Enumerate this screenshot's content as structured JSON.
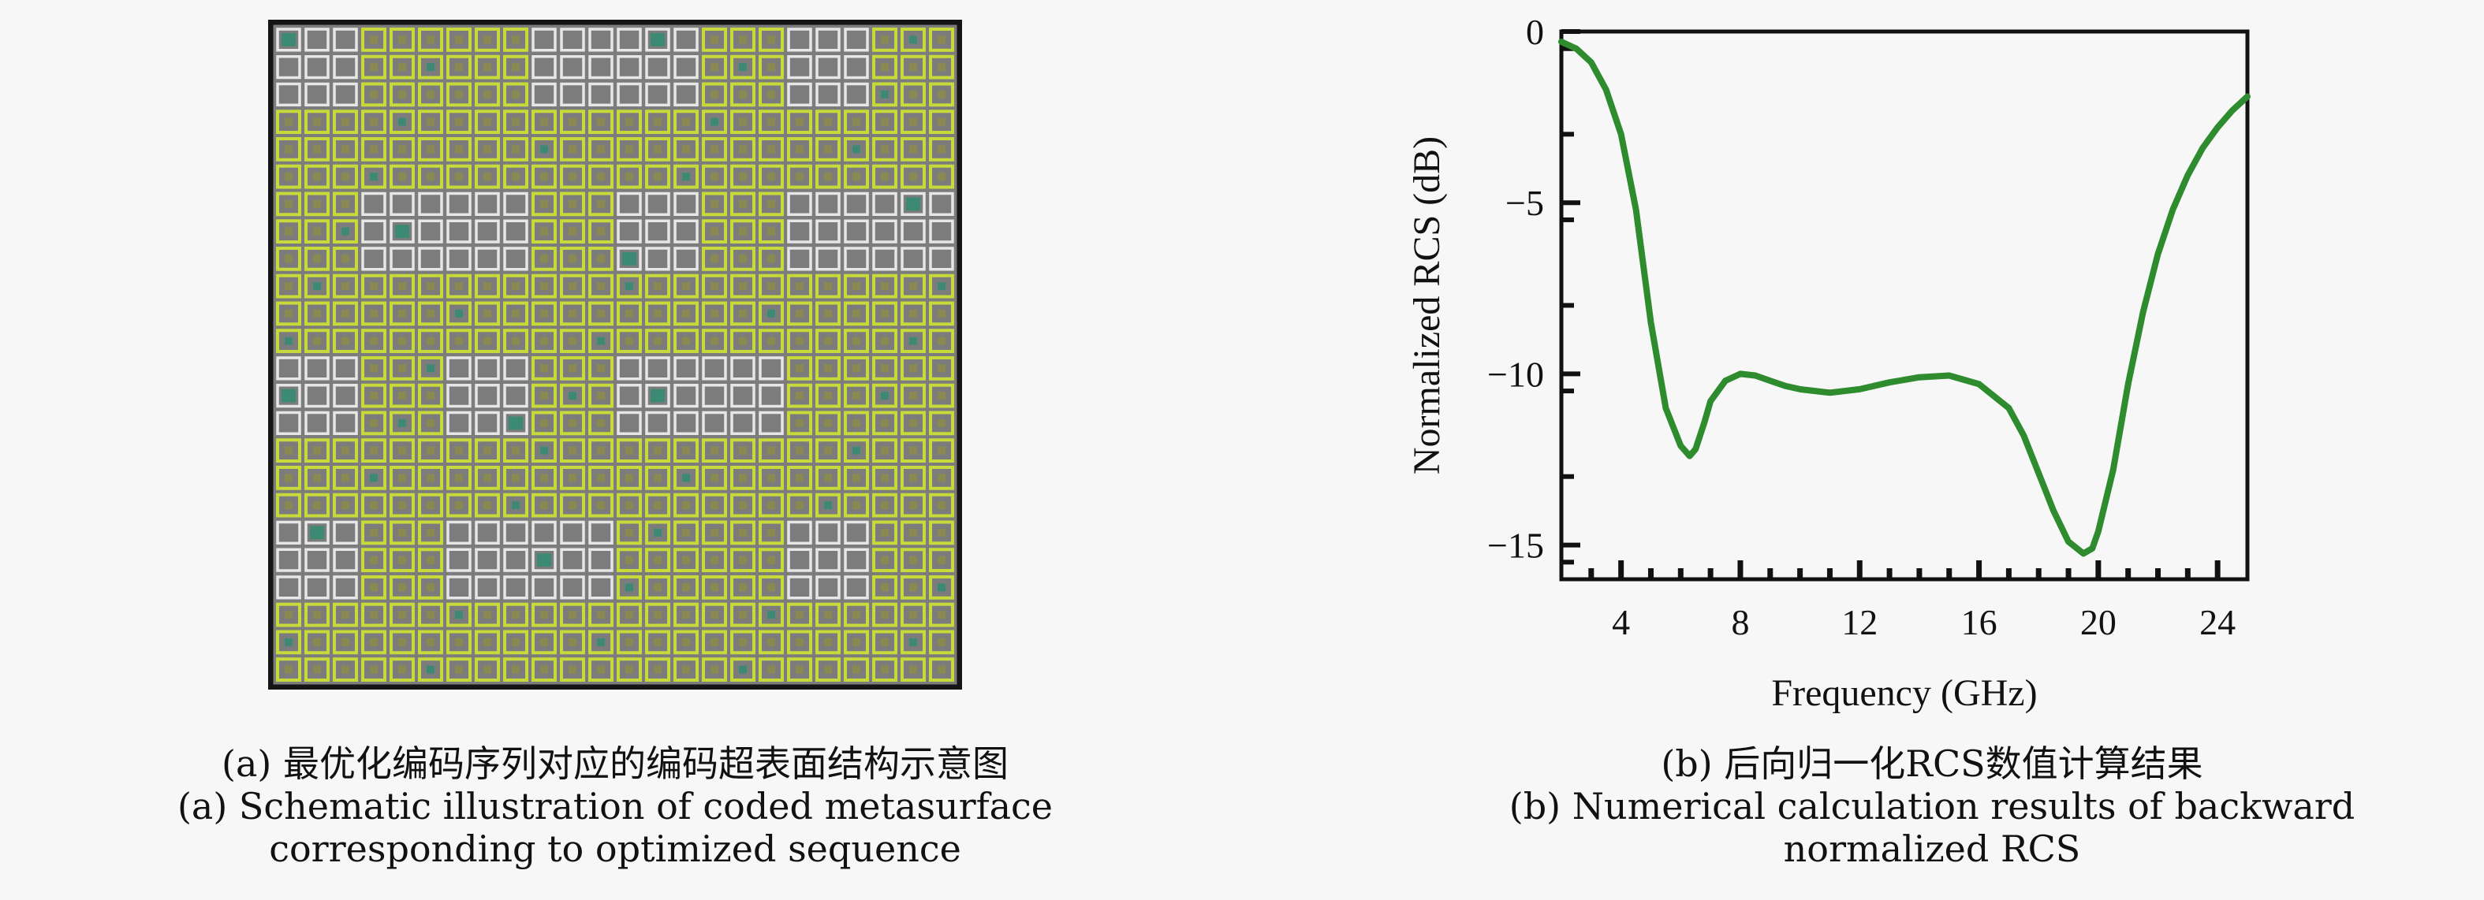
{
  "panel_a": {
    "caption_cn": "(a) 最优化编码序列对应的编码超表面结构示意图",
    "caption_en_line1": "(a) Schematic illustration of coded metasurface",
    "caption_en_line2": "corresponding to optimized sequence",
    "colors": {
      "background": "#7c7c7c",
      "border": "#151515",
      "unit_yellow": "#c8d93c",
      "unit_white": "#e6e6e6",
      "unit_teal": "#3d8a74",
      "unit_core": "#8a8a50"
    }
  },
  "panel_b": {
    "caption_cn": "(b) 后向归一化RCS数值计算结果",
    "caption_en_line1": "(b) Numerical calculation results of backward",
    "caption_en_line2": "normalized RCS"
  },
  "chart_data": {
    "type": "line",
    "title": "",
    "xlabel": "Frequency (GHz)",
    "ylabel": "Normalized RCS (dB)",
    "xlim": [
      2,
      25
    ],
    "ylim": [
      -16,
      0
    ],
    "xticks": [
      4,
      8,
      12,
      16,
      20,
      24
    ],
    "yticks": [
      0,
      -5,
      -10,
      -15
    ],
    "ytick_labels": [
      "0",
      "−5",
      "−10",
      "−15"
    ],
    "grid": false,
    "line_color": "#2e8b2e",
    "series": [
      {
        "x": [
          2,
          2.5,
          3,
          3.5,
          4,
          4.5,
          5,
          5.5,
          6,
          6.3,
          6.5,
          6.8,
          7,
          7.5,
          8,
          8.5,
          9,
          9.5,
          10,
          11,
          12,
          13,
          14,
          15,
          16,
          17,
          17.5,
          18,
          18.5,
          19,
          19.5,
          19.8,
          20,
          20.5,
          21,
          21.5,
          22,
          22.5,
          23,
          23.5,
          24,
          24.5,
          25
        ],
        "y": [
          -0.3,
          -0.5,
          -0.9,
          -1.7,
          -3.0,
          -5.2,
          -8.5,
          -11.0,
          -12.1,
          -12.4,
          -12.2,
          -11.4,
          -10.8,
          -10.2,
          -10.0,
          -10.05,
          -10.2,
          -10.35,
          -10.45,
          -10.55,
          -10.45,
          -10.25,
          -10.1,
          -10.05,
          -10.3,
          -11.0,
          -11.8,
          -12.9,
          -14.0,
          -14.9,
          -15.25,
          -15.1,
          -14.6,
          -12.8,
          -10.3,
          -8.2,
          -6.5,
          -5.2,
          -4.2,
          -3.4,
          -2.8,
          -2.3,
          -1.9
        ]
      }
    ]
  }
}
